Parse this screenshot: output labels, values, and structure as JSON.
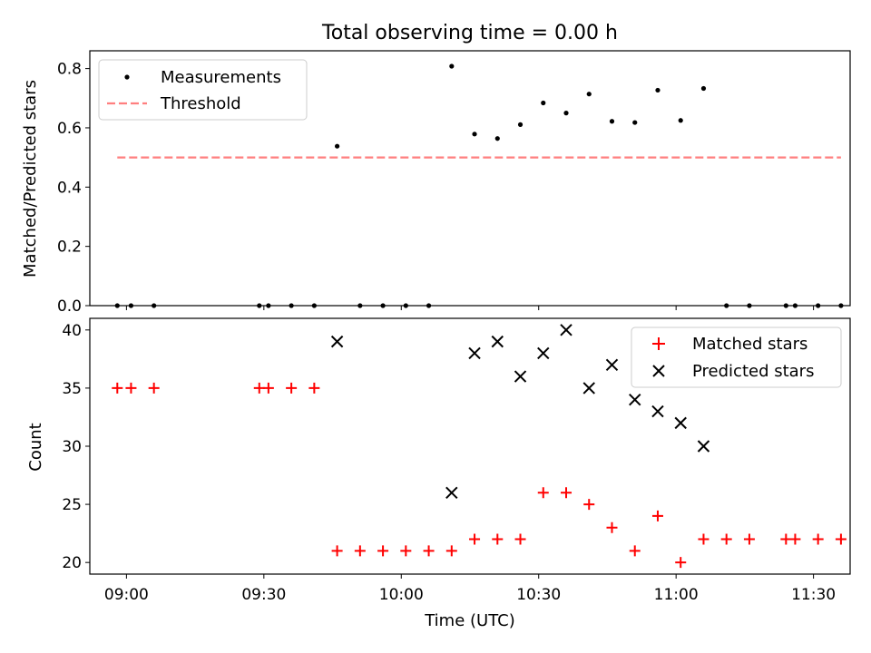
{
  "chart_data": [
    {
      "type": "scatter",
      "title": "Total observing time = 0.00 h",
      "xlabel": "",
      "ylabel": "Matched/Predicted stars",
      "ylim": [
        0,
        0.86
      ],
      "yticks": [
        "0.0",
        "0.2",
        "0.4",
        "0.6",
        "0.8"
      ],
      "ytick_values": [
        0,
        0.2,
        0.4,
        0.6,
        0.8
      ],
      "xlim": [
        "08:52",
        "11:38"
      ],
      "legend": "upper left",
      "colors": {
        "measurements": "#000000",
        "threshold": "#ff7f7f"
      },
      "series": [
        {
          "name": "Measurements",
          "marker": "dot",
          "x": [
            "08:58",
            "09:01",
            "09:06",
            "09:29",
            "09:31",
            "09:36",
            "09:41",
            "09:46",
            "09:51",
            "09:56",
            "10:01",
            "10:06",
            "10:11",
            "10:16",
            "10:21",
            "10:26",
            "10:31",
            "10:36",
            "10:41",
            "10:46",
            "10:51",
            "10:56",
            "11:01",
            "11:06",
            "11:11",
            "11:16",
            "11:24",
            "11:26",
            "11:31",
            "11:36"
          ],
          "y": [
            0,
            0,
            0,
            0,
            0,
            0,
            0,
            0.538,
            0,
            0,
            0,
            0,
            0.808,
            0.579,
            0.564,
            0.611,
            0.684,
            0.65,
            0.714,
            0.622,
            0.618,
            0.727,
            0.625,
            0.733,
            0,
            0,
            0,
            0,
            0,
            0
          ]
        },
        {
          "name": "Threshold",
          "style": "dashed-line",
          "x": [
            "08:58",
            "11:36"
          ],
          "y": [
            0.5,
            0.5
          ]
        }
      ]
    },
    {
      "type": "scatter",
      "title": "",
      "xlabel": "Time (UTC)",
      "ylabel": "Count",
      "ylim": [
        19,
        41
      ],
      "yticks": [
        "20",
        "25",
        "30",
        "35",
        "40"
      ],
      "ytick_values": [
        20,
        25,
        30,
        35,
        40
      ],
      "xlim": [
        "08:52",
        "11:38"
      ],
      "xticks": [
        "09:00",
        "09:30",
        "10:00",
        "10:30",
        "11:00",
        "11:30"
      ],
      "legend": "upper right",
      "colors": {
        "matched": "#ff0000",
        "predicted": "#000000"
      },
      "series": [
        {
          "name": "Matched stars",
          "marker": "plus",
          "x": [
            "08:58",
            "09:01",
            "09:06",
            "09:29",
            "09:31",
            "09:36",
            "09:41",
            "09:46",
            "09:51",
            "09:56",
            "10:01",
            "10:06",
            "10:11",
            "10:16",
            "10:21",
            "10:26",
            "10:31",
            "10:36",
            "10:41",
            "10:46",
            "10:51",
            "10:56",
            "11:01",
            "11:06",
            "11:11",
            "11:16",
            "11:24",
            "11:26",
            "11:31",
            "11:36"
          ],
          "y": [
            35,
            35,
            35,
            35,
            35,
            35,
            35,
            21,
            21,
            21,
            21,
            21,
            21,
            22,
            22,
            22,
            26,
            26,
            25,
            23,
            21,
            24,
            20,
            22,
            22,
            22,
            22,
            22,
            22,
            22
          ]
        },
        {
          "name": "Predicted stars",
          "marker": "x",
          "x": [
            "09:46",
            "10:11",
            "10:16",
            "10:21",
            "10:26",
            "10:31",
            "10:36",
            "10:41",
            "10:46",
            "10:51",
            "10:56",
            "11:01",
            "11:06"
          ],
          "y": [
            39,
            26,
            38,
            39,
            36,
            38,
            40,
            35,
            37,
            34,
            33,
            32,
            30
          ]
        }
      ]
    }
  ]
}
